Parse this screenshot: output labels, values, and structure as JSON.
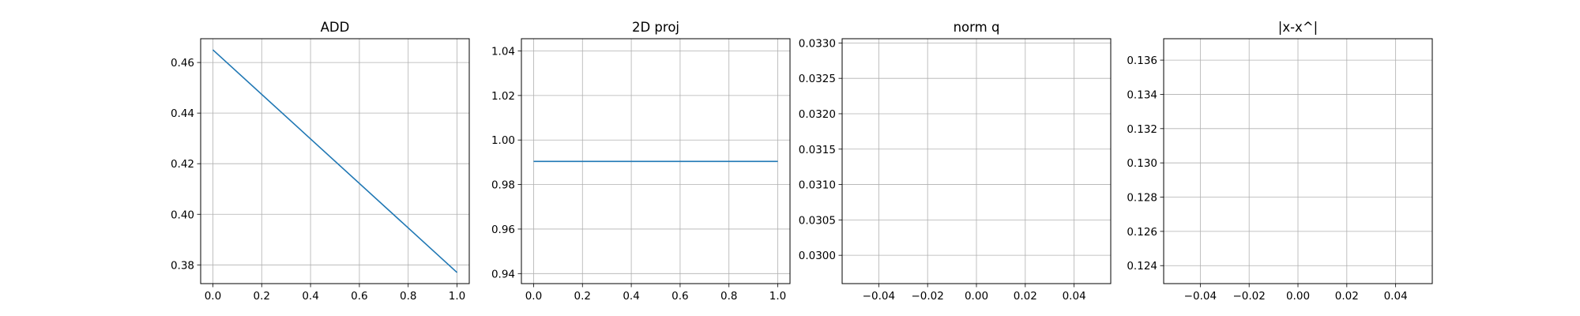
{
  "chart_data": [
    {
      "type": "line",
      "title": "ADD",
      "xlabel": "",
      "ylabel": "",
      "x": [
        0.0,
        1.0
      ],
      "series": [
        {
          "values": [
            0.465,
            0.377
          ]
        }
      ],
      "xlim": [
        -0.05,
        1.05
      ],
      "ylim": [
        0.3726,
        0.4694
      ],
      "xticks": [
        0.0,
        0.2,
        0.4,
        0.6,
        0.8,
        1.0
      ],
      "xtick_labels": [
        "0.0",
        "0.2",
        "0.4",
        "0.6",
        "0.8",
        "1.0"
      ],
      "yticks": [
        0.38,
        0.4,
        0.42,
        0.44,
        0.46
      ],
      "ytick_labels": [
        "0.38",
        "0.40",
        "0.42",
        "0.44",
        "0.46"
      ],
      "grid": true
    },
    {
      "type": "line",
      "title": "2D proj",
      "xlabel": "",
      "ylabel": "",
      "x": [
        0.0,
        1.0
      ],
      "series": [
        {
          "values": [
            0.9904,
            0.9904
          ]
        }
      ],
      "xlim": [
        -0.05,
        1.05
      ],
      "ylim": [
        0.9355,
        1.0455
      ],
      "xticks": [
        0.0,
        0.2,
        0.4,
        0.6,
        0.8,
        1.0
      ],
      "xtick_labels": [
        "0.0",
        "0.2",
        "0.4",
        "0.6",
        "0.8",
        "1.0"
      ],
      "yticks": [
        0.94,
        0.96,
        0.98,
        1.0,
        1.02,
        1.04
      ],
      "ytick_labels": [
        "0.94",
        "0.96",
        "0.98",
        "1.00",
        "1.02",
        "1.04"
      ],
      "grid": true
    },
    {
      "type": "line",
      "title": "norm q",
      "xlabel": "",
      "ylabel": "",
      "x": [],
      "series": [
        {
          "values": []
        }
      ],
      "xlim": [
        -0.055,
        0.055
      ],
      "ylim": [
        0.0296,
        0.03306
      ],
      "xticks": [
        -0.04,
        -0.02,
        0.0,
        0.02,
        0.04
      ],
      "xtick_labels": [
        "−0.04",
        "−0.02",
        "0.00",
        "0.02",
        "0.04"
      ],
      "yticks": [
        0.03,
        0.0305,
        0.031,
        0.0315,
        0.032,
        0.0325,
        0.033
      ],
      "ytick_labels": [
        "0.0300",
        "0.0305",
        "0.0310",
        "0.0315",
        "0.0320",
        "0.0325",
        "0.0330"
      ],
      "grid": true
    },
    {
      "type": "line",
      "title": "|x-x^|",
      "xlabel": "",
      "ylabel": "",
      "x": [],
      "series": [
        {
          "values": []
        }
      ],
      "xlim": [
        -0.055,
        0.055
      ],
      "ylim": [
        0.12295,
        0.13725
      ],
      "xticks": [
        -0.04,
        -0.02,
        0.0,
        0.02,
        0.04
      ],
      "xtick_labels": [
        "−0.04",
        "−0.02",
        "0.00",
        "0.02",
        "0.04"
      ],
      "yticks": [
        0.124,
        0.126,
        0.128,
        0.13,
        0.132,
        0.134,
        0.136
      ],
      "ytick_labels": [
        "0.124",
        "0.126",
        "0.128",
        "0.130",
        "0.132",
        "0.134",
        "0.136"
      ],
      "grid": true
    }
  ],
  "colors": {
    "line": "#1f77b4",
    "grid": "#b0b0b0",
    "axes": "#000000",
    "background": "#ffffff"
  }
}
